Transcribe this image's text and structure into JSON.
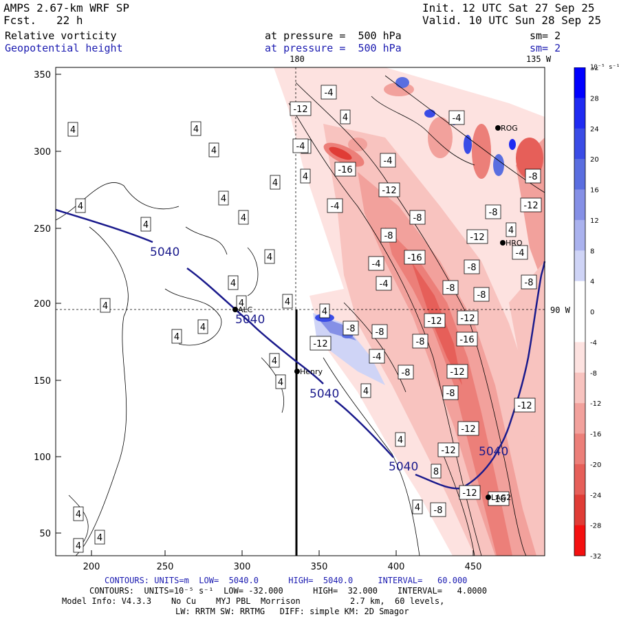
{
  "header": {
    "model": "AMPS 2.67-km WRF SP",
    "init": "Init. 12 UTC Sat 27 Sep 25",
    "fcst_label": "Fcst.",
    "fcst_value": "22 h",
    "valid": "Valid. 10 UTC Sun 28 Sep 25",
    "field1": "Relative vorticity",
    "field1_level": "at pressure =  500 hPa",
    "field1_sm": "sm= 2",
    "field2": "Geopotential height",
    "field2_level": "at pressure =  500 hPa",
    "field2_sm": "sm= 2"
  },
  "map": {
    "meridian_label": "180",
    "meridian2_label": "135 W",
    "parallel_label": "90 W",
    "x_ticks": [
      "200",
      "250",
      "300",
      "350",
      "400",
      "450"
    ],
    "y_ticks": [
      "350",
      "300",
      "250",
      "200",
      "150",
      "100",
      "50"
    ],
    "stations": [
      {
        "name": "ROG"
      },
      {
        "name": "HRO"
      },
      {
        "name": "ALC"
      },
      {
        "name": "Henry"
      },
      {
        "name": "LAG2"
      }
    ],
    "height_labels": [
      "5040",
      "5040",
      "5040",
      "5040",
      "5040"
    ],
    "vort_labels": [
      "4",
      "4",
      "4",
      "4",
      "4",
      "4",
      "4",
      "4",
      "4",
      "4",
      "4",
      "4",
      "4",
      "4",
      "4",
      "4",
      "4",
      "4",
      "4",
      "4",
      "4",
      "4",
      "4",
      "4",
      "4",
      "4",
      "4",
      "4",
      "-4",
      "-4",
      "-4",
      "-4",
      "-4",
      "-4",
      "-4",
      "-4",
      "-4",
      "-8",
      "-8",
      "-8",
      "-8",
      "-8",
      "-8",
      "-8",
      "-8",
      "-8",
      "-8",
      "-8",
      "-8",
      "-8",
      "-8",
      "8",
      "-12",
      "-12",
      "-12",
      "-12",
      "-12",
      "-12",
      "-12",
      "-12",
      "-12",
      "-12",
      "-12",
      "-12",
      "-16",
      "-16",
      "-16",
      "-16"
    ]
  },
  "colorbar": {
    "unit": "10⁻⁵ s⁻¹",
    "ticks": [
      "32",
      "28",
      "24",
      "20",
      "16",
      "12",
      "8",
      "4",
      "0",
      "-4",
      "-8",
      "-12",
      "-16",
      "-20",
      "-24",
      "-28",
      "-32"
    ],
    "colors": [
      "#0000ff",
      "#1f2bf2",
      "#3a4ce6",
      "#5a6ee0",
      "#8590e6",
      "#aab2ee",
      "#cfd4f6",
      "#ffffff",
      "#ffffff",
      "#fde2e0",
      "#f8c3bf",
      "#f2a19c",
      "#ec7f79",
      "#e65f59",
      "#e03c36",
      "#f41010"
    ]
  },
  "footer": {
    "line1": "CONTOURS: UNITS=m  LOW=  5040.0      HIGH=  5040.0     INTERVAL=   60.000",
    "line2": "CONTOURS:  UNITS=10⁻⁵ s⁻¹  LOW= -32.000      HIGH=  32.000    INTERVAL=   4.0000",
    "line3": "Model Info: V4.3.3    No Cu    MYJ PBL  Morrison          2.7 km,  60 levels,",
    "line4": "LW: RRTM SW: RRTMG   DIFF: simple KM: 2D Smagor"
  }
}
